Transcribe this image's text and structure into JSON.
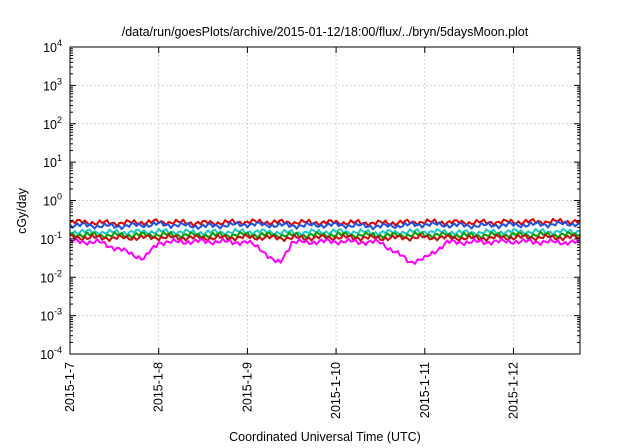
{
  "chart_data": {
    "type": "line",
    "title": "/data/run/goesPlots/archive/2015-01-12/18:00/flux/../bryn/5daysMoon.plot",
    "xlabel": "Coordinated Universal Time (UTC)",
    "ylabel": "cGy/day",
    "y_scale": "log",
    "ylim": [
      0.0001,
      10000
    ],
    "y_ticks": [
      {
        "base": "10",
        "exp": "-4",
        "value": 0.0001
      },
      {
        "base": "10",
        "exp": "-3",
        "value": 0.001
      },
      {
        "base": "10",
        "exp": "-2",
        "value": 0.01
      },
      {
        "base": "10",
        "exp": "-1",
        "value": 0.1
      },
      {
        "base": "10",
        "exp": "0",
        "value": 1
      },
      {
        "base": "10",
        "exp": "1",
        "value": 10
      },
      {
        "base": "10",
        "exp": "2",
        "value": 100
      },
      {
        "base": "10",
        "exp": "3",
        "value": 1000
      },
      {
        "base": "10",
        "exp": "4",
        "value": 10000
      }
    ],
    "xlim": [
      "2015-01-07",
      "2015-01-12 18:00"
    ],
    "x_ticks": [
      "2015-1-7",
      "2015-1-8",
      "2015-1-9",
      "2015-1-10",
      "2015-1-11",
      "2015-1-12"
    ],
    "grid": true,
    "series": [
      {
        "color": "#e00000",
        "points": [
          [
            "2015-01-07 00:00",
            0.29
          ],
          [
            "2015-01-07 12:00",
            0.27
          ],
          [
            "2015-01-08 00:00",
            0.29
          ],
          [
            "2015-01-08 12:00",
            0.27
          ],
          [
            "2015-01-09 00:00",
            0.29
          ],
          [
            "2015-01-09 12:00",
            0.28
          ],
          [
            "2015-01-10 00:00",
            0.28
          ],
          [
            "2015-01-10 12:00",
            0.27
          ],
          [
            "2015-01-11 00:00",
            0.29
          ],
          [
            "2015-01-11 12:00",
            0.28
          ],
          [
            "2015-01-12 00:00",
            0.29
          ],
          [
            "2015-01-12 18:00",
            0.3
          ]
        ]
      },
      {
        "color": "#2050e0",
        "points": [
          [
            "2015-01-07 00:00",
            0.24
          ],
          [
            "2015-01-07 12:00",
            0.22
          ],
          [
            "2015-01-08 00:00",
            0.25
          ],
          [
            "2015-01-08 12:00",
            0.22
          ],
          [
            "2015-01-09 00:00",
            0.25
          ],
          [
            "2015-01-09 12:00",
            0.23
          ],
          [
            "2015-01-10 00:00",
            0.24
          ],
          [
            "2015-01-10 12:00",
            0.22
          ],
          [
            "2015-01-11 00:00",
            0.25
          ],
          [
            "2015-01-11 12:00",
            0.23
          ],
          [
            "2015-01-12 00:00",
            0.24
          ],
          [
            "2015-01-12 18:00",
            0.26
          ]
        ]
      },
      {
        "color": "#20c8c8",
        "points": [
          [
            "2015-01-07 00:00",
            0.16
          ],
          [
            "2015-01-07 12:00",
            0.15
          ],
          [
            "2015-01-08 00:00",
            0.16
          ],
          [
            "2015-01-08 12:00",
            0.15
          ],
          [
            "2015-01-09 00:00",
            0.16
          ],
          [
            "2015-01-09 12:00",
            0.15
          ],
          [
            "2015-01-10 00:00",
            0.16
          ],
          [
            "2015-01-10 12:00",
            0.15
          ],
          [
            "2015-01-11 00:00",
            0.16
          ],
          [
            "2015-01-11 12:00",
            0.15
          ],
          [
            "2015-01-12 00:00",
            0.16
          ],
          [
            "2015-01-12 18:00",
            0.16
          ]
        ]
      },
      {
        "color": "#00a000",
        "points": [
          [
            "2015-01-07 00:00",
            0.13
          ],
          [
            "2015-01-07 12:00",
            0.125
          ],
          [
            "2015-01-08 00:00",
            0.13
          ],
          [
            "2015-01-08 12:00",
            0.125
          ],
          [
            "2015-01-09 00:00",
            0.13
          ],
          [
            "2015-01-09 12:00",
            0.125
          ],
          [
            "2015-01-10 00:00",
            0.13
          ],
          [
            "2015-01-10 12:00",
            0.125
          ],
          [
            "2015-01-11 00:00",
            0.13
          ],
          [
            "2015-01-11 12:00",
            0.125
          ],
          [
            "2015-01-12 00:00",
            0.13
          ],
          [
            "2015-01-12 18:00",
            0.13
          ]
        ]
      },
      {
        "color": "#c01010",
        "points": [
          [
            "2015-01-07 00:00",
            0.11
          ],
          [
            "2015-01-07 12:00",
            0.105
          ],
          [
            "2015-01-08 00:00",
            0.11
          ],
          [
            "2015-01-08 12:00",
            0.105
          ],
          [
            "2015-01-09 00:00",
            0.11
          ],
          [
            "2015-01-09 12:00",
            0.105
          ],
          [
            "2015-01-10 00:00",
            0.11
          ],
          [
            "2015-01-10 12:00",
            0.105
          ],
          [
            "2015-01-11 00:00",
            0.11
          ],
          [
            "2015-01-11 12:00",
            0.105
          ],
          [
            "2015-01-12 00:00",
            0.11
          ],
          [
            "2015-01-12 18:00",
            0.11
          ]
        ]
      },
      {
        "color": "#ff00ff",
        "points": [
          [
            "2015-01-07 00:00",
            0.085
          ],
          [
            "2015-01-07 08:00",
            0.08
          ],
          [
            "2015-01-07 14:00",
            0.05
          ],
          [
            "2015-01-07 20:00",
            0.03
          ],
          [
            "2015-01-08 00:00",
            0.08
          ],
          [
            "2015-01-08 12:00",
            0.085
          ],
          [
            "2015-01-09 00:00",
            0.08
          ],
          [
            "2015-01-09 09:00",
            0.025
          ],
          [
            "2015-01-09 12:00",
            0.08
          ],
          [
            "2015-01-10 00:00",
            0.085
          ],
          [
            "2015-01-10 12:00",
            0.08
          ],
          [
            "2015-01-10 20:00",
            0.025
          ],
          [
            "2015-01-11 00:00",
            0.03
          ],
          [
            "2015-01-11 06:00",
            0.08
          ],
          [
            "2015-01-12 00:00",
            0.085
          ],
          [
            "2015-01-12 18:00",
            0.08
          ]
        ]
      }
    ]
  }
}
